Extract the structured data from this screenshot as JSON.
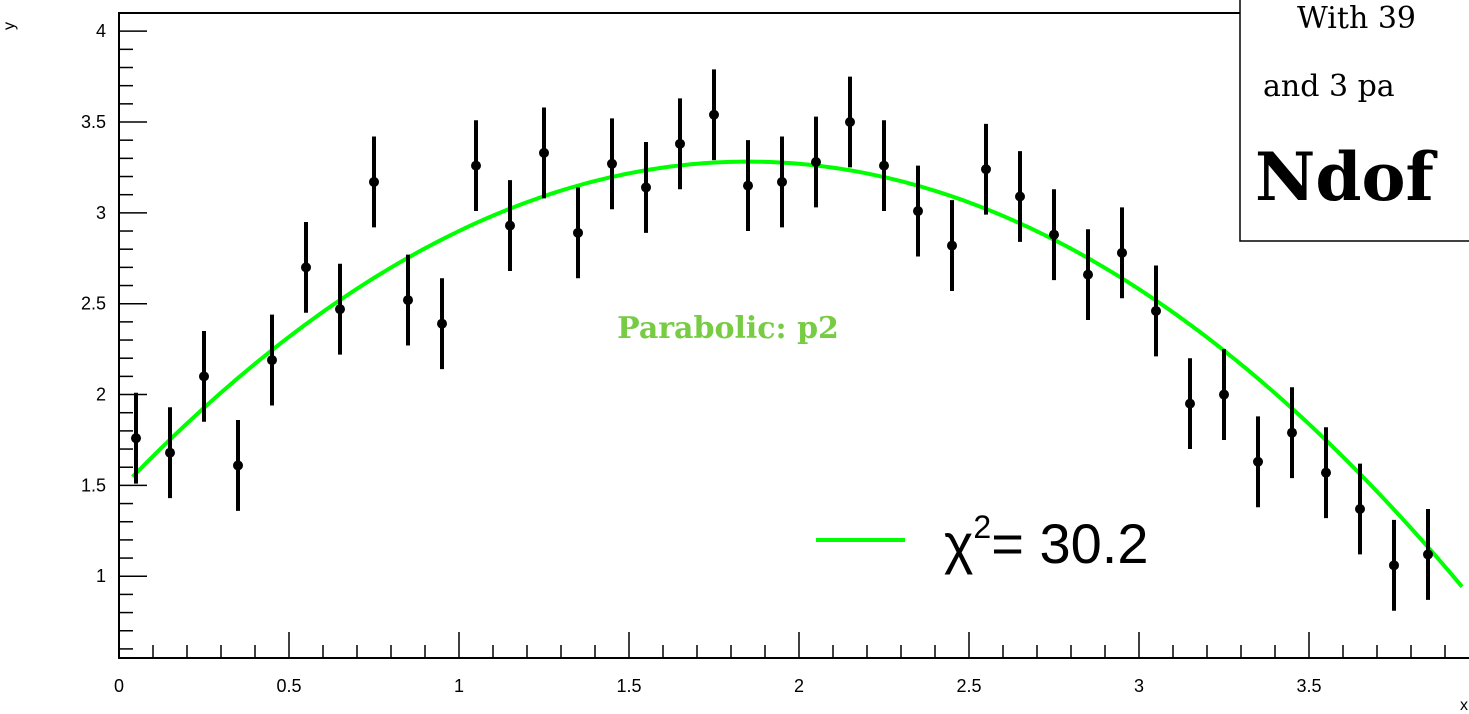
{
  "chart_data": {
    "type": "scatter",
    "title": "",
    "xlabel": "x",
    "ylabel": "y",
    "xlim": [
      0,
      4
    ],
    "ylim": [
      0.55,
      4.1
    ],
    "x_ticks": [
      0,
      0.5,
      1,
      1.5,
      2,
      2.5,
      3,
      3.5,
      4
    ],
    "x_tick_labels": [
      "0",
      "0.5",
      "1",
      "1.5",
      "2",
      "2.5",
      "3",
      "3.5",
      "4"
    ],
    "y_ticks": [
      1,
      1.5,
      2,
      2.5,
      3,
      3.5,
      4
    ],
    "y_tick_labels": [
      "1",
      "1.5",
      "2",
      "2.5",
      "3",
      "3.5",
      "4"
    ],
    "points": [
      {
        "x": 0.05,
        "y": 1.76,
        "err": 0.25
      },
      {
        "x": 0.15,
        "y": 1.68,
        "err": 0.25
      },
      {
        "x": 0.25,
        "y": 2.1,
        "err": 0.25
      },
      {
        "x": 0.35,
        "y": 1.61,
        "err": 0.25
      },
      {
        "x": 0.45,
        "y": 2.19,
        "err": 0.25
      },
      {
        "x": 0.55,
        "y": 2.7,
        "err": 0.25
      },
      {
        "x": 0.65,
        "y": 2.47,
        "err": 0.25
      },
      {
        "x": 0.75,
        "y": 3.17,
        "err": 0.25
      },
      {
        "x": 0.85,
        "y": 2.52,
        "err": 0.25
      },
      {
        "x": 0.95,
        "y": 2.39,
        "err": 0.25
      },
      {
        "x": 1.05,
        "y": 3.26,
        "err": 0.25
      },
      {
        "x": 1.15,
        "y": 2.93,
        "err": 0.25
      },
      {
        "x": 1.25,
        "y": 3.33,
        "err": 0.25
      },
      {
        "x": 1.35,
        "y": 2.89,
        "err": 0.25
      },
      {
        "x": 1.45,
        "y": 3.27,
        "err": 0.25
      },
      {
        "x": 1.55,
        "y": 3.14,
        "err": 0.25
      },
      {
        "x": 1.65,
        "y": 3.38,
        "err": 0.25
      },
      {
        "x": 1.75,
        "y": 3.54,
        "err": 0.25
      },
      {
        "x": 1.85,
        "y": 3.15,
        "err": 0.25
      },
      {
        "x": 1.95,
        "y": 3.17,
        "err": 0.25
      },
      {
        "x": 2.05,
        "y": 3.28,
        "err": 0.25
      },
      {
        "x": 2.15,
        "y": 3.5,
        "err": 0.25
      },
      {
        "x": 2.25,
        "y": 3.26,
        "err": 0.25
      },
      {
        "x": 2.35,
        "y": 3.01,
        "err": 0.25
      },
      {
        "x": 2.45,
        "y": 2.82,
        "err": 0.25
      },
      {
        "x": 2.55,
        "y": 3.24,
        "err": 0.25
      },
      {
        "x": 2.65,
        "y": 3.09,
        "err": 0.25
      },
      {
        "x": 2.75,
        "y": 2.88,
        "err": 0.25
      },
      {
        "x": 2.85,
        "y": 2.66,
        "err": 0.25
      },
      {
        "x": 2.95,
        "y": 2.78,
        "err": 0.25
      },
      {
        "x": 3.05,
        "y": 2.46,
        "err": 0.25
      },
      {
        "x": 3.15,
        "y": 1.95,
        "err": 0.25
      },
      {
        "x": 3.25,
        "y": 2.0,
        "err": 0.25
      },
      {
        "x": 3.35,
        "y": 1.63,
        "err": 0.25
      },
      {
        "x": 3.45,
        "y": 1.79,
        "err": 0.25
      },
      {
        "x": 3.55,
        "y": 1.57,
        "err": 0.25
      },
      {
        "x": 3.65,
        "y": 1.37,
        "err": 0.25
      },
      {
        "x": 3.75,
        "y": 1.06,
        "err": 0.25
      },
      {
        "x": 3.85,
        "y": 1.12,
        "err": 0.25
      }
    ],
    "fit": {
      "name": "Parabolic: p2",
      "coefficients": [
        1.47,
        1.96,
        -0.53
      ],
      "x_range": [
        0.04,
        3.95
      ],
      "color": "#00ff00",
      "label_color": "#77cc44"
    },
    "legend": {
      "label": "χ",
      "superscript": "2",
      "value_text": "= 30.2",
      "placement": "bottom-right"
    },
    "info_box": {
      "line1": "With 39",
      "line2": "and 3 pa",
      "line3": "Ndof"
    },
    "grid": false
  }
}
